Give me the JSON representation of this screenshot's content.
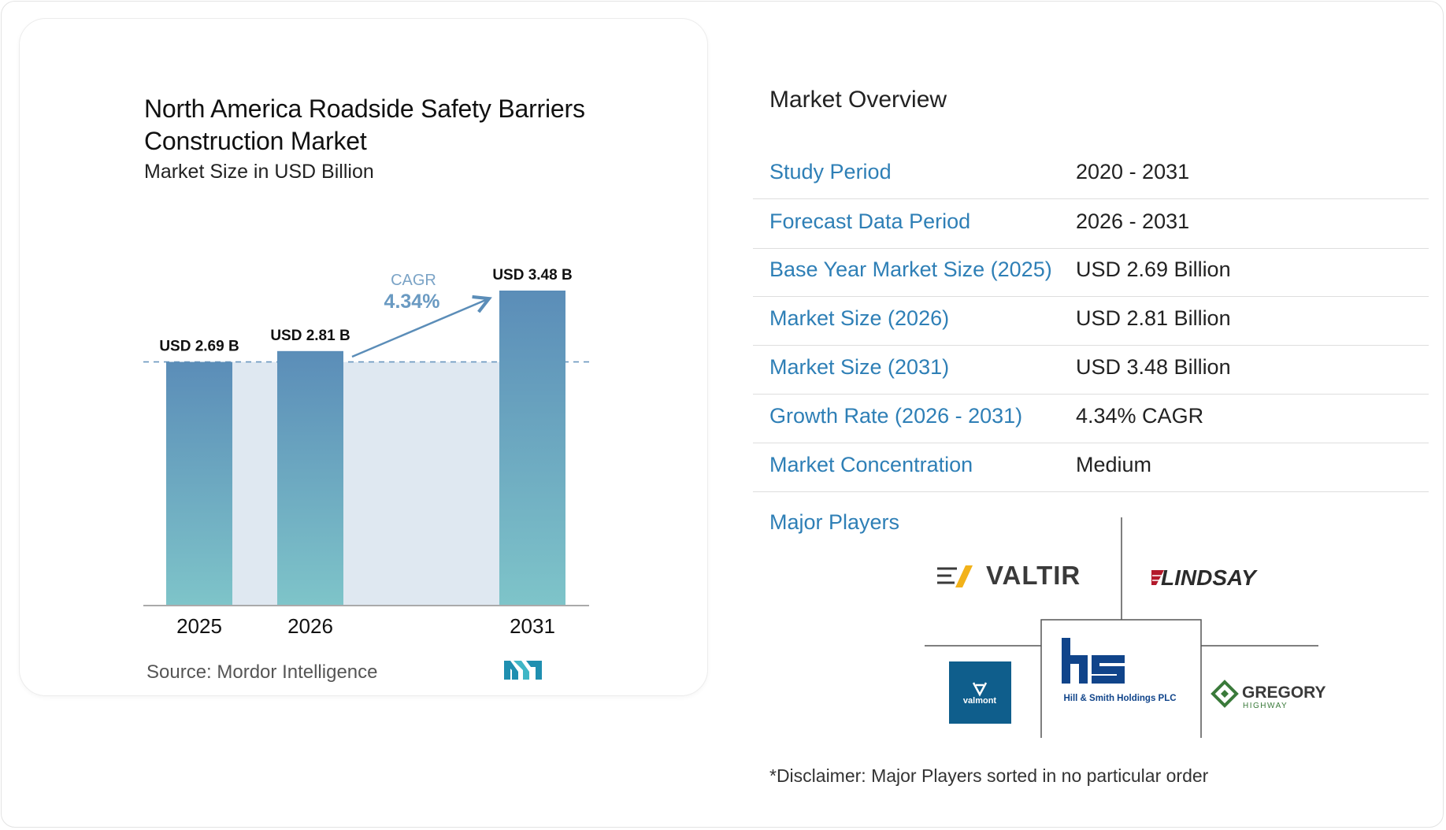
{
  "chart": {
    "title": "North America Roadside Safety Barriers Construction Market",
    "subtitle": "Market Size in USD Billion",
    "source": "Source:  Mordor Intelligence",
    "cagr_label": "CAGR",
    "cagr_value": "4.34%"
  },
  "chart_data": {
    "type": "bar",
    "categories": [
      "2025",
      "2026",
      "2031"
    ],
    "values": [
      2.69,
      2.81,
      3.48
    ],
    "data_labels": [
      "USD 2.69 B",
      "USD 2.81 B",
      "USD 3.48 B"
    ],
    "title": "North America Roadside Safety Barriers Construction Market",
    "subtitle": "Market Size in USD Billion",
    "xlabel": "",
    "ylabel": "",
    "ylim": [
      0,
      3.48
    ],
    "annotations": [
      "CAGR",
      "4.34%"
    ],
    "grid": false,
    "colors": {
      "bar_top": "#5b8db8",
      "bar_bottom": "#7ec4c9",
      "band": "#dfe8f1"
    }
  },
  "overview": {
    "title": "Market Overview",
    "rows": [
      {
        "label": "Study Period",
        "value": "2020 - 2031"
      },
      {
        "label": "Forecast Data Period",
        "value": "2026 - 2031"
      },
      {
        "label": "Base Year Market Size (2025)",
        "value": "USD 2.69 Billion"
      },
      {
        "label": "Market Size (2026)",
        "value": "USD 2.81 Billion"
      },
      {
        "label": "Market Size (2031)",
        "value": "USD 3.48 Billion"
      },
      {
        "label": "Growth Rate (2026 - 2031)",
        "value": "4.34% CAGR"
      },
      {
        "label": "Market Concentration",
        "value": "Medium"
      }
    ]
  },
  "players": {
    "title": "Major Players",
    "logos": {
      "valtir": "VALTIR",
      "lindsay": "LINDSAY",
      "valmont": "valmont",
      "hill_smith": "Hill & Smith Holdings PLC",
      "gregory": "GREGORY",
      "gregory_sub": "HIGHWAY"
    },
    "disclaimer": "*Disclaimer: Major Players sorted in no particular order"
  }
}
